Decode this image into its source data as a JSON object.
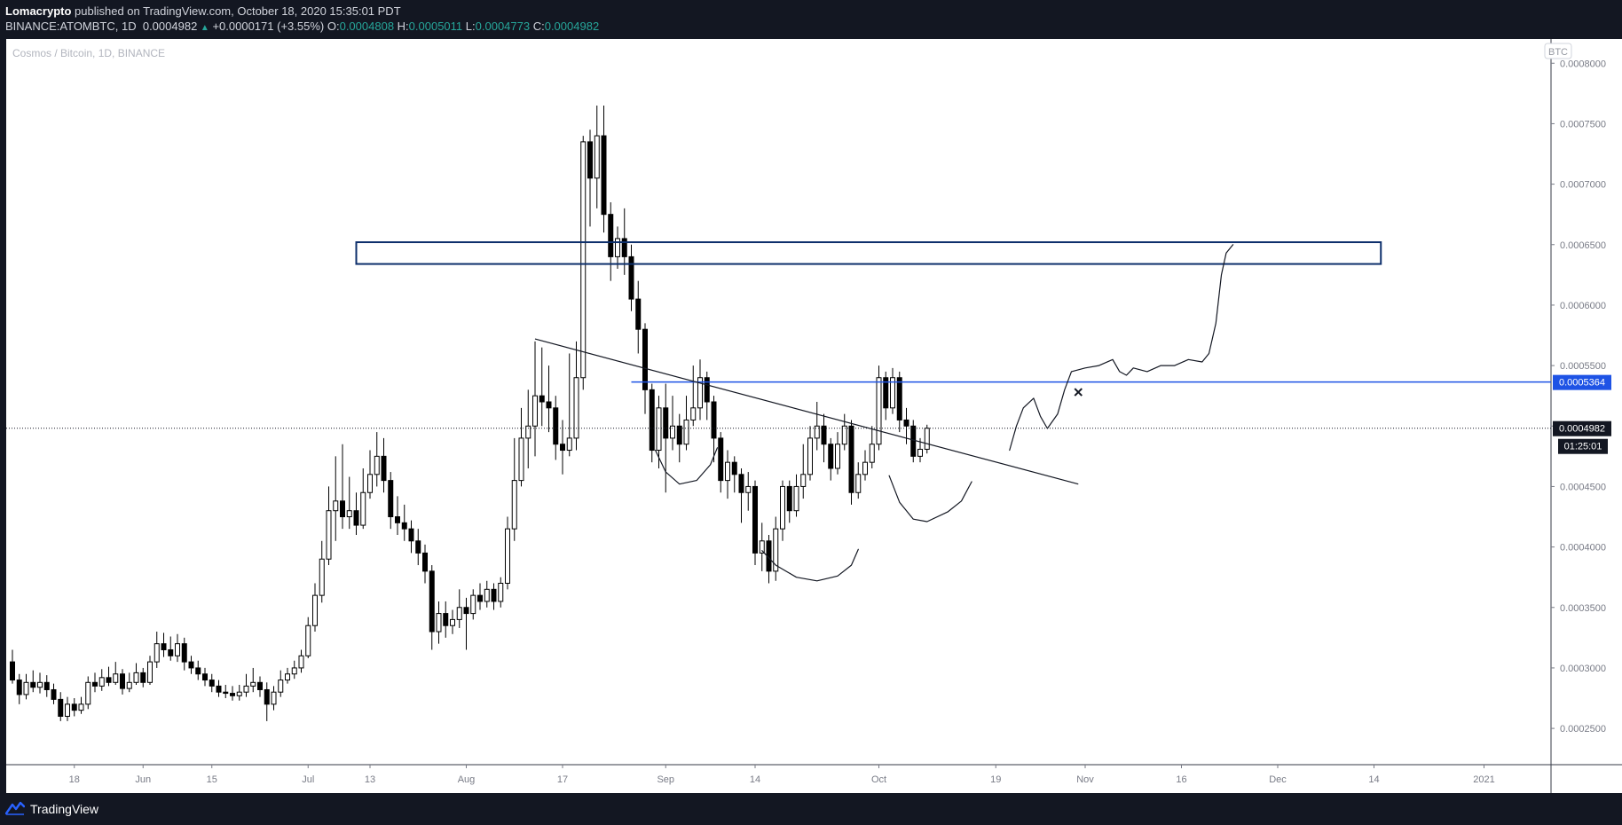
{
  "header": {
    "author": "Lomacrypto",
    "published": "published on TradingView.com, October 18, 2020 15:35:01 PDT",
    "symbol": "BINANCE:ATOMBTC, 1D",
    "last": "0.0004982",
    "change": "+0.0000171 (+3.55%)",
    "o_label": "O:",
    "o_value": "0.0004808",
    "h_label": "H:",
    "h_value": "0.0005011",
    "l_label": "L:",
    "l_value": "0.0004773",
    "c_label": "C:",
    "c_value": "0.0004982"
  },
  "footer": {
    "brand": "TradingView"
  },
  "colors": {
    "background": "#131722",
    "chart": "#ffffff",
    "accent": "#1e53e5",
    "zone": "#0d2f6b",
    "grid_text": "#787b86"
  },
  "chart_data": {
    "type": "candlestick",
    "title": "Cosmos / Bitcoin, 1D, BINANCE",
    "currency_badge": "BTC",
    "ylim": [
      0.00022,
      0.00082
    ],
    "y_ticks": [
      {
        "value": 0.00025,
        "label": "0.0002500"
      },
      {
        "value": 0.0003,
        "label": "0.0003000"
      },
      {
        "value": 0.00035,
        "label": "0.0003500"
      },
      {
        "value": 0.0004,
        "label": "0.0004000"
      },
      {
        "value": 0.00045,
        "label": "0.0004500"
      },
      {
        "value": 0.0005,
        "label": "0.0005000"
      },
      {
        "value": 0.00055,
        "label": "0.0005500"
      },
      {
        "value": 0.0006,
        "label": "0.0006000"
      },
      {
        "value": 0.00065,
        "label": "0.0006500"
      },
      {
        "value": 0.0007,
        "label": "0.0007000"
      },
      {
        "value": 0.00075,
        "label": "0.0007500"
      },
      {
        "value": 0.0008,
        "label": "0.0008000"
      }
    ],
    "x_ticks": [
      {
        "index": 9,
        "label": "18"
      },
      {
        "index": 19,
        "label": "Jun"
      },
      {
        "index": 29,
        "label": "15"
      },
      {
        "index": 43,
        "label": "Jul"
      },
      {
        "index": 52,
        "label": "13"
      },
      {
        "index": 66,
        "label": "Aug"
      },
      {
        "index": 80,
        "label": "17"
      },
      {
        "index": 95,
        "label": "Sep"
      },
      {
        "index": 108,
        "label": "14"
      },
      {
        "index": 126,
        "label": "Oct"
      },
      {
        "index": 143,
        "label": "19"
      },
      {
        "index": 156,
        "label": "Nov"
      },
      {
        "index": 170,
        "label": "16"
      },
      {
        "index": 184,
        "label": "Dec"
      },
      {
        "index": 198,
        "label": "14"
      },
      {
        "index": 214,
        "label": "2021"
      }
    ],
    "price_labels": {
      "resistance": {
        "value": 0.0005364,
        "label": "0.0005364"
      },
      "last": {
        "value": 0.0004982,
        "label": "0.0004982"
      },
      "countdown": "01:25:01"
    },
    "candles": [
      [
        0.000305,
        0.00029,
        0.000315,
        0.000287
      ],
      [
        0.00029,
        0.000278,
        0.000295,
        0.00027
      ],
      [
        0.000278,
        0.000288,
        0.000295,
        0.000274
      ],
      [
        0.000288,
        0.000284,
        0.000298,
        0.00028
      ],
      [
        0.000284,
        0.000288,
        0.000296,
        0.000279
      ],
      [
        0.000288,
        0.000282,
        0.000294,
        0.000276
      ],
      [
        0.000282,
        0.000274,
        0.000287,
        0.00027
      ],
      [
        0.000274,
        0.00026,
        0.00028,
        0.000256
      ],
      [
        0.00026,
        0.00027,
        0.000276,
        0.000256
      ],
      [
        0.00027,
        0.000265,
        0.000275,
        0.00026
      ],
      [
        0.000265,
        0.00027,
        0.000276,
        0.000262
      ],
      [
        0.00027,
        0.000288,
        0.000293,
        0.000266
      ],
      [
        0.000288,
        0.000285,
        0.000296,
        0.00028
      ],
      [
        0.000285,
        0.000292,
        0.000299,
        0.000281
      ],
      [
        0.000292,
        0.000288,
        0.000301,
        0.000285
      ],
      [
        0.000288,
        0.000295,
        0.000305,
        0.000286
      ],
      [
        0.000295,
        0.000283,
        0.000299,
        0.000278
      ],
      [
        0.000283,
        0.000288,
        0.000296,
        0.00028
      ],
      [
        0.000288,
        0.000296,
        0.000304,
        0.000286
      ],
      [
        0.000296,
        0.000288,
        0.0003,
        0.000284
      ],
      [
        0.000288,
        0.000305,
        0.00031,
        0.000286
      ],
      [
        0.000305,
        0.00032,
        0.00033,
        0.0003
      ],
      [
        0.00032,
        0.000315,
        0.000329,
        0.000309
      ],
      [
        0.000315,
        0.00031,
        0.000326,
        0.000306
      ],
      [
        0.00031,
        0.00032,
        0.000328,
        0.000305
      ],
      [
        0.00032,
        0.000305,
        0.000325,
        0.000298
      ],
      [
        0.000305,
        0.0003,
        0.00031,
        0.000295
      ],
      [
        0.0003,
        0.000295,
        0.000306,
        0.00029
      ],
      [
        0.000295,
        0.00029,
        0.0003,
        0.000285
      ],
      [
        0.00029,
        0.000285,
        0.000295,
        0.00028
      ],
      [
        0.000285,
        0.00028,
        0.00029,
        0.000276
      ],
      [
        0.00028,
        0.000279,
        0.000286,
        0.000275
      ],
      [
        0.000279,
        0.000277,
        0.000285,
        0.000273
      ],
      [
        0.000277,
        0.00028,
        0.000286,
        0.000273
      ],
      [
        0.00028,
        0.000285,
        0.000295,
        0.000276
      ],
      [
        0.000285,
        0.000288,
        0.0003,
        0.00028
      ],
      [
        0.000288,
        0.000282,
        0.000293,
        0.000276
      ],
      [
        0.000282,
        0.00027,
        0.000288,
        0.000256
      ],
      [
        0.00027,
        0.00028,
        0.000285,
        0.000265
      ],
      [
        0.00028,
        0.00029,
        0.000298,
        0.000276
      ],
      [
        0.00029,
        0.000295,
        0.0003,
        0.000287
      ],
      [
        0.000295,
        0.0003,
        0.000306,
        0.000291
      ],
      [
        0.0003,
        0.00031,
        0.000315,
        0.000296
      ],
      [
        0.00031,
        0.000335,
        0.000342,
        0.000308
      ],
      [
        0.000335,
        0.00036,
        0.00037,
        0.00033
      ],
      [
        0.00036,
        0.00039,
        0.000405,
        0.000354
      ],
      [
        0.00039,
        0.00043,
        0.00045,
        0.000385
      ],
      [
        0.00043,
        0.000438,
        0.000475,
        0.000405
      ],
      [
        0.000438,
        0.000425,
        0.000485,
        0.000415
      ],
      [
        0.000425,
        0.00043,
        0.000458,
        0.000415
      ],
      [
        0.00043,
        0.000418,
        0.000445,
        0.00041
      ],
      [
        0.000418,
        0.000445,
        0.000465,
        0.000415
      ],
      [
        0.000445,
        0.00046,
        0.00048,
        0.00044
      ],
      [
        0.00046,
        0.000475,
        0.000495,
        0.00045
      ],
      [
        0.000475,
        0.000455,
        0.00049,
        0.000445
      ],
      [
        0.000455,
        0.000425,
        0.000462,
        0.000415
      ],
      [
        0.000425,
        0.00042,
        0.000442,
        0.00041
      ],
      [
        0.00042,
        0.000415,
        0.000435,
        0.000405
      ],
      [
        0.000415,
        0.000405,
        0.000422,
        0.000395
      ],
      [
        0.000405,
        0.000395,
        0.000415,
        0.000385
      ],
      [
        0.000395,
        0.00038,
        0.000402,
        0.00037
      ],
      [
        0.00038,
        0.00033,
        0.000385,
        0.000315
      ],
      [
        0.00033,
        0.000345,
        0.000355,
        0.00032
      ],
      [
        0.000345,
        0.000335,
        0.000355,
        0.000325
      ],
      [
        0.000335,
        0.00034,
        0.000348,
        0.000328
      ],
      [
        0.00034,
        0.00035,
        0.000365,
        0.000333
      ],
      [
        0.00035,
        0.000345,
        0.000358,
        0.000315
      ],
      [
        0.000345,
        0.00036,
        0.000365,
        0.00034
      ],
      [
        0.00036,
        0.000355,
        0.00037,
        0.000348
      ],
      [
        0.000355,
        0.000365,
        0.000372,
        0.00035
      ],
      [
        0.000365,
        0.000355,
        0.00037,
        0.000348
      ],
      [
        0.000355,
        0.00037,
        0.000375,
        0.00035
      ],
      [
        0.00037,
        0.000415,
        0.000425,
        0.000365
      ],
      [
        0.000415,
        0.000455,
        0.00049,
        0.000405
      ],
      [
        0.000455,
        0.00049,
        0.000515,
        0.00045
      ],
      [
        0.00049,
        0.0005,
        0.00053,
        0.000465
      ],
      [
        0.0005,
        0.000525,
        0.00057,
        0.000475
      ],
      [
        0.000525,
        0.00052,
        0.000565,
        0.0005
      ],
      [
        0.00052,
        0.000515,
        0.00055,
        0.000495
      ],
      [
        0.000515,
        0.000485,
        0.000525,
        0.000472
      ],
      [
        0.000485,
        0.00048,
        0.000505,
        0.00046
      ],
      [
        0.00048,
        0.00049,
        0.00056,
        0.000475
      ],
      [
        0.00049,
        0.00054,
        0.00057,
        0.00048
      ],
      [
        0.00054,
        0.000735,
        0.00074,
        0.00053
      ],
      [
        0.000735,
        0.000705,
        0.000745,
        0.000665
      ],
      [
        0.000705,
        0.00074,
        0.000765,
        0.00068
      ],
      [
        0.00074,
        0.000675,
        0.000765,
        0.00066
      ],
      [
        0.000675,
        0.00064,
        0.000685,
        0.00062
      ],
      [
        0.00064,
        0.000655,
        0.000665,
        0.00063
      ],
      [
        0.000655,
        0.00064,
        0.00068,
        0.000625
      ],
      [
        0.00064,
        0.000605,
        0.00065,
        0.000595
      ],
      [
        0.000605,
        0.00058,
        0.00062,
        0.00056
      ],
      [
        0.00058,
        0.00053,
        0.000585,
        0.00051
      ],
      [
        0.00053,
        0.00048,
        0.000535,
        0.00047
      ],
      [
        0.00048,
        0.000515,
        0.000525,
        0.000465
      ],
      [
        0.000515,
        0.00049,
        0.000535,
        0.000445
      ],
      [
        0.00049,
        0.0005,
        0.000525,
        0.00048
      ],
      [
        0.0005,
        0.000485,
        0.00051,
        0.00047
      ],
      [
        0.000485,
        0.000505,
        0.000525,
        0.00048
      ],
      [
        0.000505,
        0.000515,
        0.00055,
        0.0005
      ],
      [
        0.000515,
        0.00054,
        0.000555,
        0.000505
      ],
      [
        0.00054,
        0.00052,
        0.000545,
        0.000505
      ],
      [
        0.00052,
        0.00049,
        0.000525,
        0.00047
      ],
      [
        0.00049,
        0.000455,
        0.000495,
        0.000445
      ],
      [
        0.000455,
        0.00047,
        0.00048,
        0.00044
      ],
      [
        0.00047,
        0.00046,
        0.000475,
        0.000445
      ],
      [
        0.00046,
        0.000445,
        0.000465,
        0.00042
      ],
      [
        0.000445,
        0.00045,
        0.000462,
        0.00043
      ],
      [
        0.00045,
        0.000395,
        0.000455,
        0.000385
      ],
      [
        0.000395,
        0.000405,
        0.00042,
        0.00038
      ],
      [
        0.000405,
        0.00038,
        0.00041,
        0.00037
      ],
      [
        0.00038,
        0.000415,
        0.000425,
        0.000372
      ],
      [
        0.000415,
        0.00045,
        0.000455,
        0.000405
      ],
      [
        0.00045,
        0.00043,
        0.000455,
        0.00042
      ],
      [
        0.00043,
        0.00045,
        0.00046,
        0.000425
      ],
      [
        0.00045,
        0.00046,
        0.000485,
        0.00044
      ],
      [
        0.00046,
        0.00049,
        0.0005,
        0.000455
      ],
      [
        0.00049,
        0.0005,
        0.00052,
        0.00048
      ],
      [
        0.0005,
        0.000485,
        0.00051,
        0.00047
      ],
      [
        0.000485,
        0.000465,
        0.00049,
        0.000455
      ],
      [
        0.000465,
        0.000485,
        0.000495,
        0.00046
      ],
      [
        0.000485,
        0.0005,
        0.00051,
        0.00048
      ],
      [
        0.0005,
        0.000445,
        0.000505,
        0.000435
      ],
      [
        0.000445,
        0.00046,
        0.00047,
        0.00044
      ],
      [
        0.00046,
        0.00047,
        0.00048,
        0.000455
      ],
      [
        0.00047,
        0.000485,
        0.0005,
        0.000465
      ],
      [
        0.000485,
        0.00054,
        0.00055,
        0.00048
      ],
      [
        0.00054,
        0.000515,
        0.000545,
        0.000505
      ],
      [
        0.000515,
        0.00054,
        0.000548,
        0.00051
      ],
      [
        0.00054,
        0.000505,
        0.000545,
        0.000495
      ],
      [
        0.000505,
        0.0005,
        0.000515,
        0.000485
      ],
      [
        0.0005,
        0.000475,
        0.000505,
        0.00047
      ],
      [
        0.000475,
        0.0004808,
        0.00049,
        0.00047
      ],
      [
        0.0004808,
        0.0004982,
        0.0005011,
        0.0004773
      ]
    ],
    "annotations": {
      "zone": {
        "i1": 50,
        "i2": 199,
        "top": 0.000652,
        "bottom": 0.000634
      },
      "trendline": {
        "i1": 76,
        "v1": 0.000572,
        "i2": 155,
        "v2": 0.000452
      },
      "resistance_line": {
        "i1": 90,
        "value": 0.0005364
      },
      "cross_marker": {
        "i": 155,
        "value": 0.000528
      }
    }
  }
}
